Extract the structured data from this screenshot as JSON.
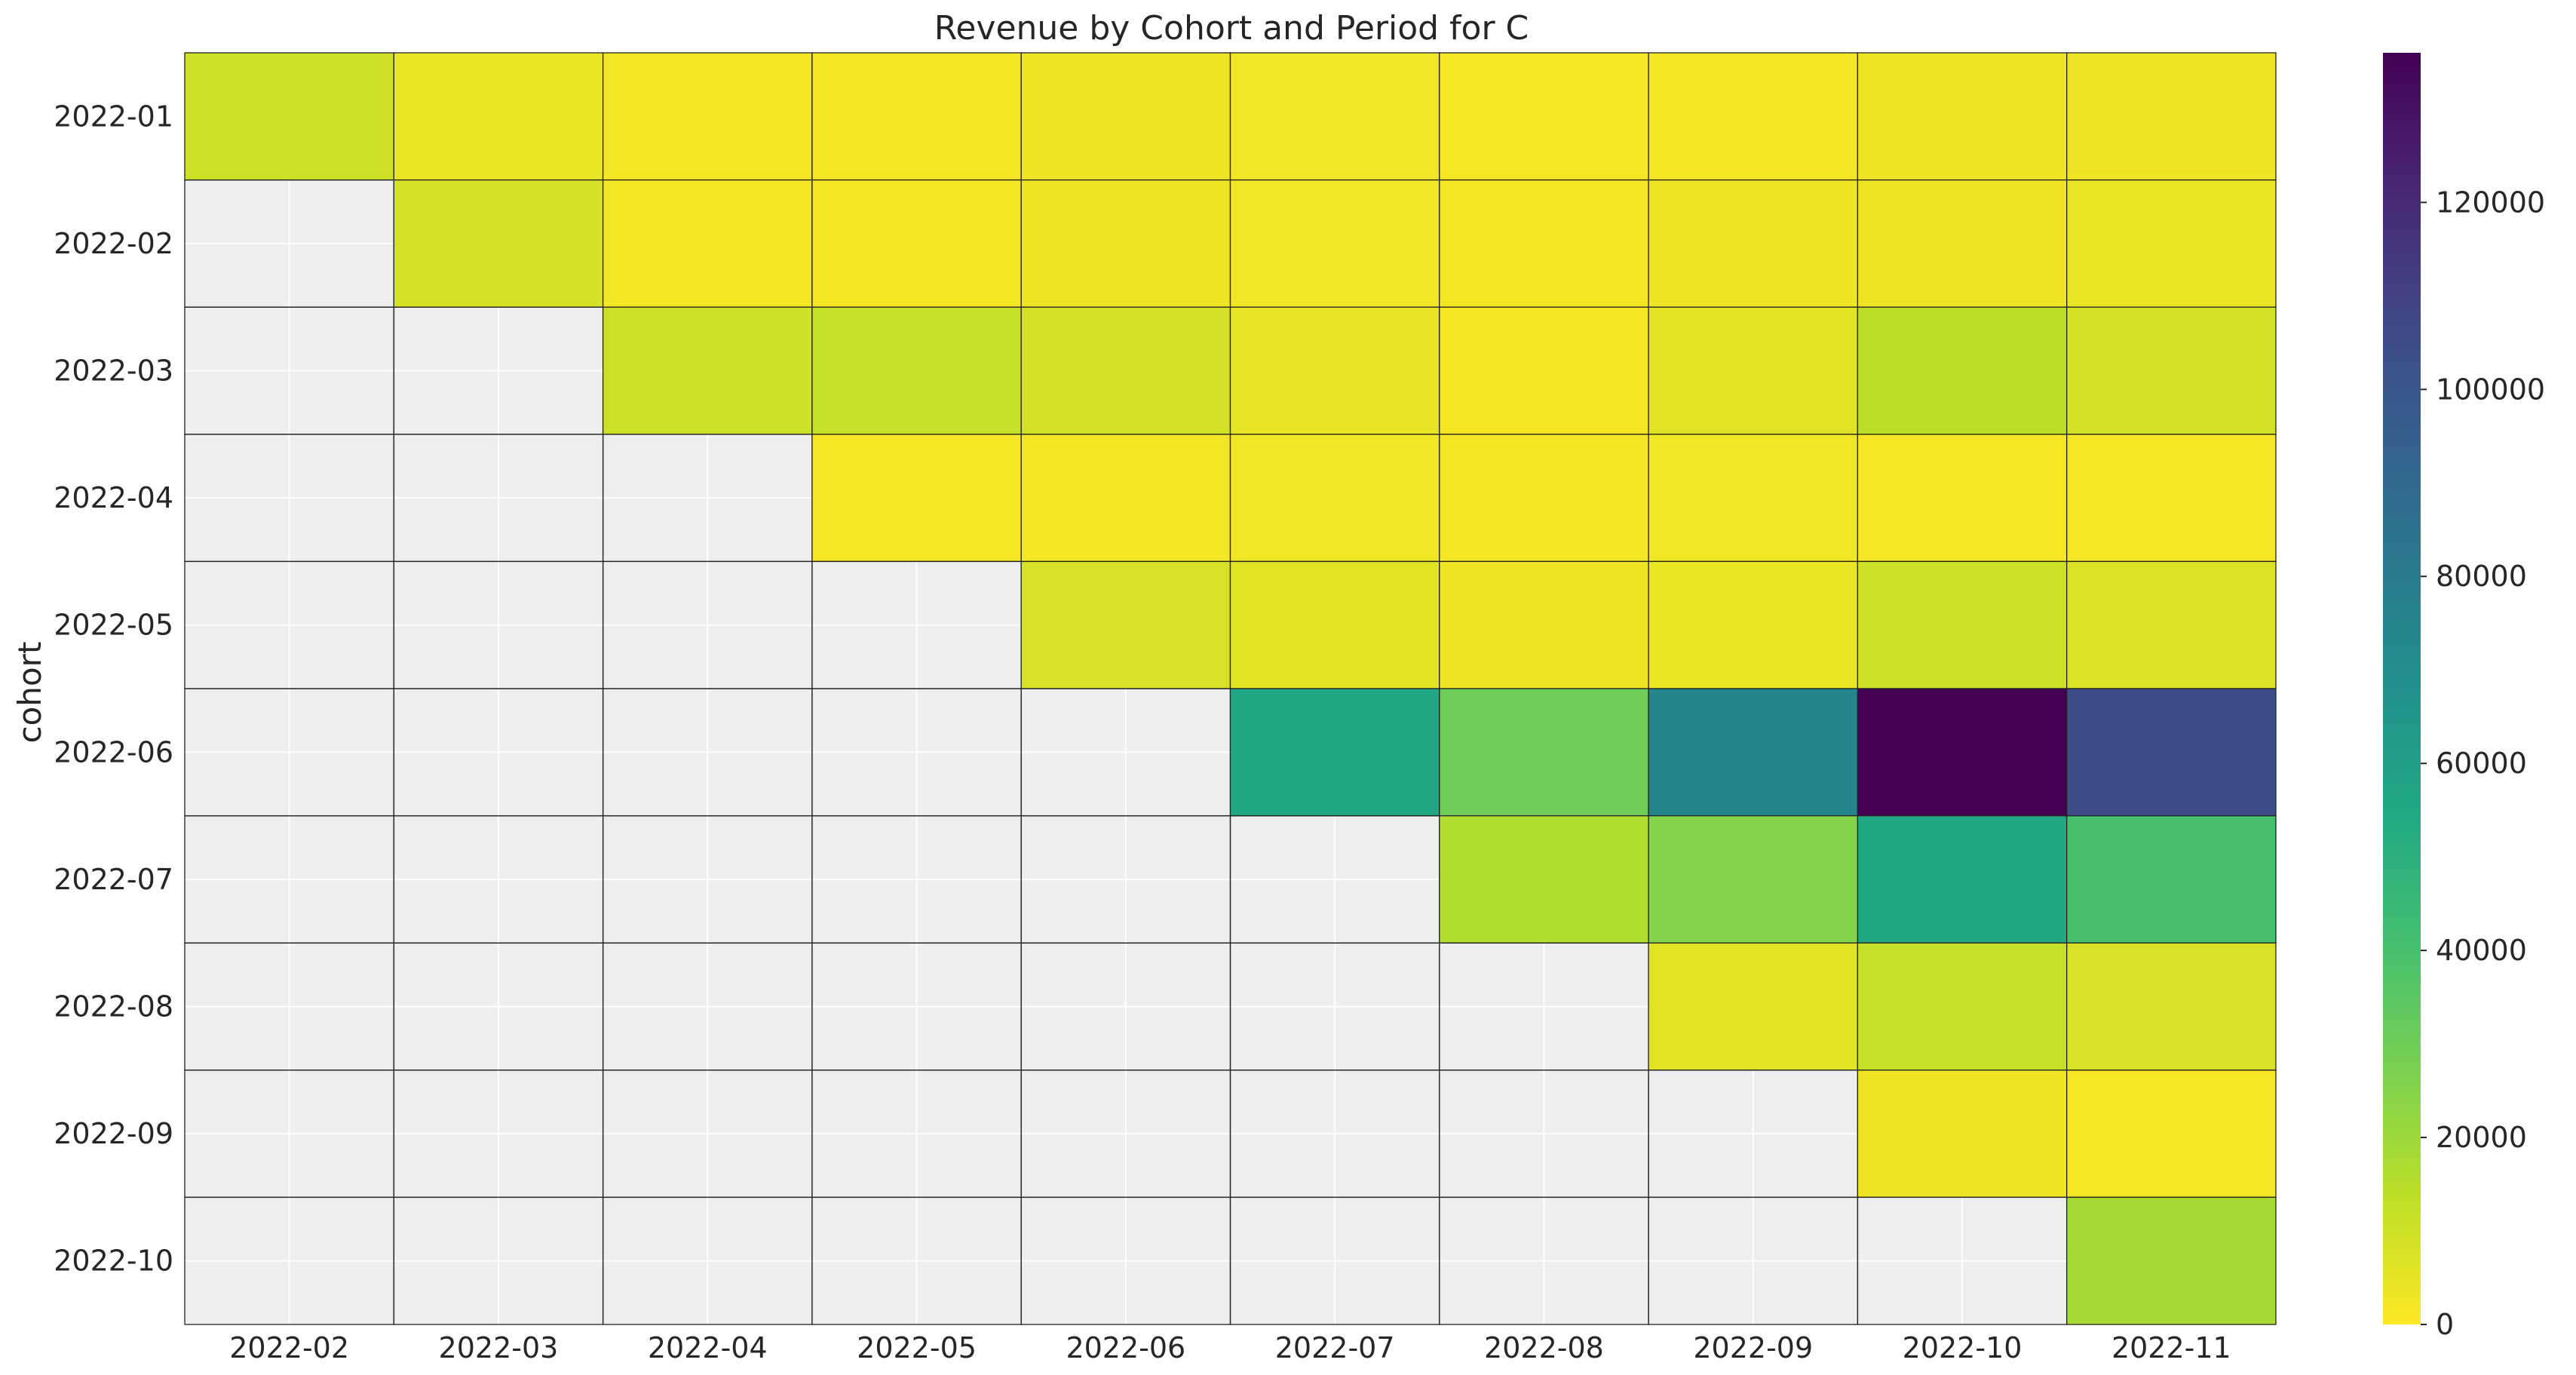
{
  "chart_data": {
    "type": "heatmap",
    "title": "Revenue by Cohort and Period for C",
    "xlabel": "",
    "ylabel": "cohort",
    "x_categories": [
      "2022-02",
      "2022-03",
      "2022-04",
      "2022-05",
      "2022-06",
      "2022-07",
      "2022-08",
      "2022-09",
      "2022-10",
      "2022-11"
    ],
    "y_categories": [
      "2022-01",
      "2022-02",
      "2022-03",
      "2022-04",
      "2022-05",
      "2022-06",
      "2022-07",
      "2022-08",
      "2022-09",
      "2022-10"
    ],
    "values": [
      [
        10000,
        4000,
        2000,
        2000,
        3000,
        2500,
        1500,
        2000,
        3000,
        3000
      ],
      [
        null,
        9000,
        2000,
        2000,
        3000,
        2500,
        2000,
        3000,
        3000,
        4000
      ],
      [
        null,
        null,
        10000,
        12000,
        9000,
        5000,
        2000,
        6000,
        14000,
        9000
      ],
      [
        null,
        null,
        null,
        1500,
        2000,
        2500,
        2000,
        2500,
        1500,
        1500
      ],
      [
        null,
        null,
        null,
        null,
        8000,
        6000,
        3000,
        4000,
        10000,
        7000
      ],
      [
        null,
        null,
        null,
        null,
        null,
        55000,
        30000,
        75000,
        136000,
        105000
      ],
      [
        null,
        null,
        null,
        null,
        null,
        null,
        16000,
        25000,
        55000,
        40000
      ],
      [
        null,
        null,
        null,
        null,
        null,
        null,
        null,
        6000,
        12000,
        8000
      ],
      [
        null,
        null,
        null,
        null,
        null,
        null,
        null,
        null,
        3000,
        1500
      ],
      [
        null,
        null,
        null,
        null,
        null,
        null,
        null,
        null,
        null,
        18000
      ]
    ],
    "colorbar": {
      "colormap": "viridis_r",
      "range": [
        0,
        136000
      ],
      "ticks": [
        0,
        20000,
        40000,
        60000,
        80000,
        100000,
        120000
      ],
      "tick_labels": [
        "0",
        "20000",
        "40000",
        "60000",
        "80000",
        "100000",
        "120000"
      ]
    },
    "missing_color": "#eeeeee",
    "grid": true
  }
}
